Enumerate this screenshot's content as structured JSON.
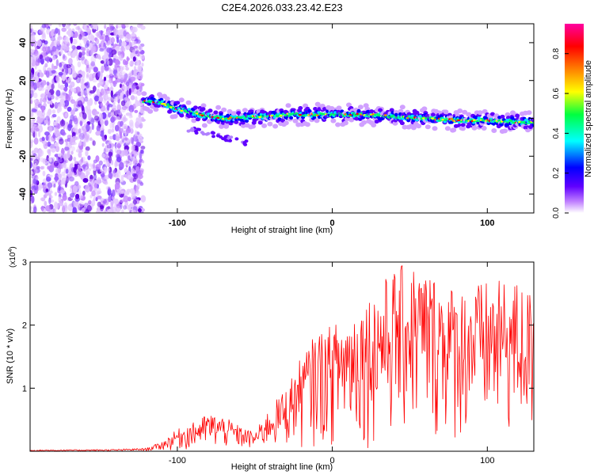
{
  "figure_title": "C2E4.2026.033.23.42.E23",
  "chart_data": [
    {
      "type": "heatmap",
      "title": "C2E4.2026.033.23.42.E23",
      "xlabel": "Height of straight line (km)",
      "ylabel": "Frequency (Hz)",
      "xlim": [
        -195,
        130
      ],
      "ylim": [
        -50,
        50
      ],
      "x_ticks": [
        -100,
        0,
        100
      ],
      "y_ticks": [
        -40,
        -20,
        0,
        20,
        40
      ],
      "colorbar": {
        "label": "Normalized spectral amplitude",
        "range": [
          0,
          0.95
        ],
        "ticks": [
          0.0,
          0.2,
          0.4,
          0.6,
          0.8
        ],
        "tick_labels": [
          "0.0",
          "0.2",
          "0.4",
          "0.6",
          "0.8"
        ],
        "colormap": [
          "#ffffff",
          "#c080ff",
          "#6000ff",
          "#0000ff",
          "#00ffff",
          "#00ff40",
          "#ffff00",
          "#ff8000",
          "#ff0000",
          "#ff00a0"
        ]
      },
      "noise_region_x": [
        -195,
        -122
      ],
      "ridge": {
        "x": [
          -122,
          -110,
          -100,
          -90,
          -80,
          -70,
          -60,
          -50,
          -40,
          -30,
          -20,
          -10,
          0,
          20,
          40,
          60,
          80,
          100,
          120,
          130
        ],
        "frequency": [
          9,
          8,
          5,
          3,
          1,
          0,
          0,
          1,
          1,
          2,
          2,
          2,
          2,
          2,
          1,
          0,
          -1,
          -1,
          -2,
          -2
        ]
      }
    },
    {
      "type": "line",
      "xlabel": "Height of straight line (km)",
      "ylabel": "SNR (10 * v/v)",
      "y_scale_label": "(x10",
      "y_scale_exponent": "4",
      "xlim": [
        -195,
        130
      ],
      "ylim": [
        0,
        3
      ],
      "x_ticks": [
        -100,
        0,
        100
      ],
      "y_ticks": [
        1,
        2,
        3
      ],
      "series_color": "#ff0000",
      "envelope": {
        "x": [
          -195,
          -140,
          -120,
          -110,
          -100,
          -90,
          -80,
          -70,
          -60,
          -50,
          -40,
          -30,
          -20,
          -10,
          0,
          20,
          40,
          50,
          60,
          80,
          100,
          120,
          130
        ],
        "upper": [
          0.02,
          0.03,
          0.05,
          0.15,
          0.35,
          0.45,
          0.6,
          0.55,
          0.4,
          0.3,
          0.7,
          1.0,
          1.5,
          1.9,
          2.0,
          2.4,
          2.9,
          3.0,
          2.9,
          2.6,
          2.7,
          2.7,
          2.5
        ]
      }
    }
  ]
}
